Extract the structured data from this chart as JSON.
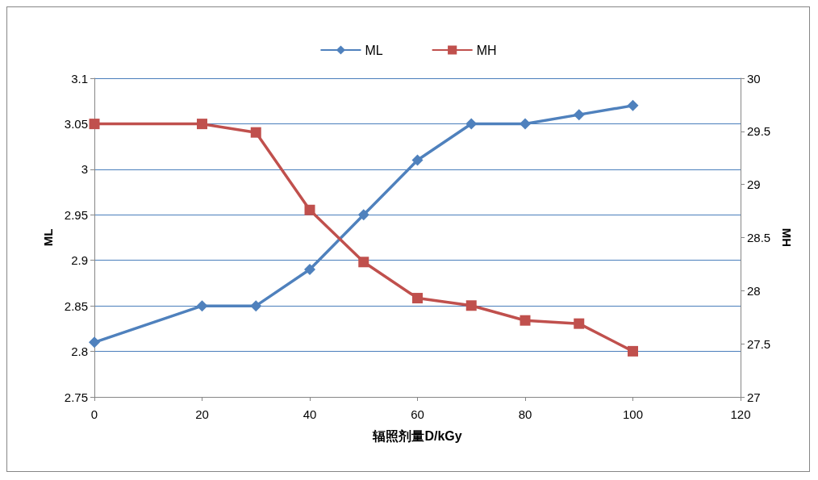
{
  "chart_data": {
    "type": "line",
    "xlabel": "辐照剂量D/kGy",
    "ylabel": "ML",
    "y2label": "MH",
    "x": [
      0,
      20,
      30,
      40,
      50,
      60,
      70,
      80,
      90,
      100
    ],
    "series": [
      {
        "name": "ML",
        "color": "#4f81bd",
        "marker": "diamond",
        "values": [
          2.81,
          2.85,
          2.85,
          2.89,
          2.95,
          3.01,
          3.05,
          3.05,
          3.06,
          3.07
        ]
      },
      {
        "name": "MH",
        "color": "#c0504d",
        "marker": "square",
        "axis": "y2",
        "values": [
          29.57,
          29.57,
          29.49,
          28.76,
          28.27,
          27.93,
          27.86,
          27.72,
          27.69,
          27.43
        ]
      }
    ],
    "xlim": [
      0,
      120
    ],
    "xticks": [
      0,
      20,
      40,
      60,
      80,
      100,
      120
    ],
    "ylim": [
      2.75,
      3.1
    ],
    "yticks": [
      2.75,
      2.8,
      2.85,
      2.9,
      2.95,
      3,
      3.05,
      3.1
    ],
    "y2lim": [
      27,
      30
    ],
    "y2ticks": [
      27,
      27.5,
      28,
      28.5,
      29,
      29.5,
      30
    ],
    "grid": "y",
    "legend": "top"
  }
}
